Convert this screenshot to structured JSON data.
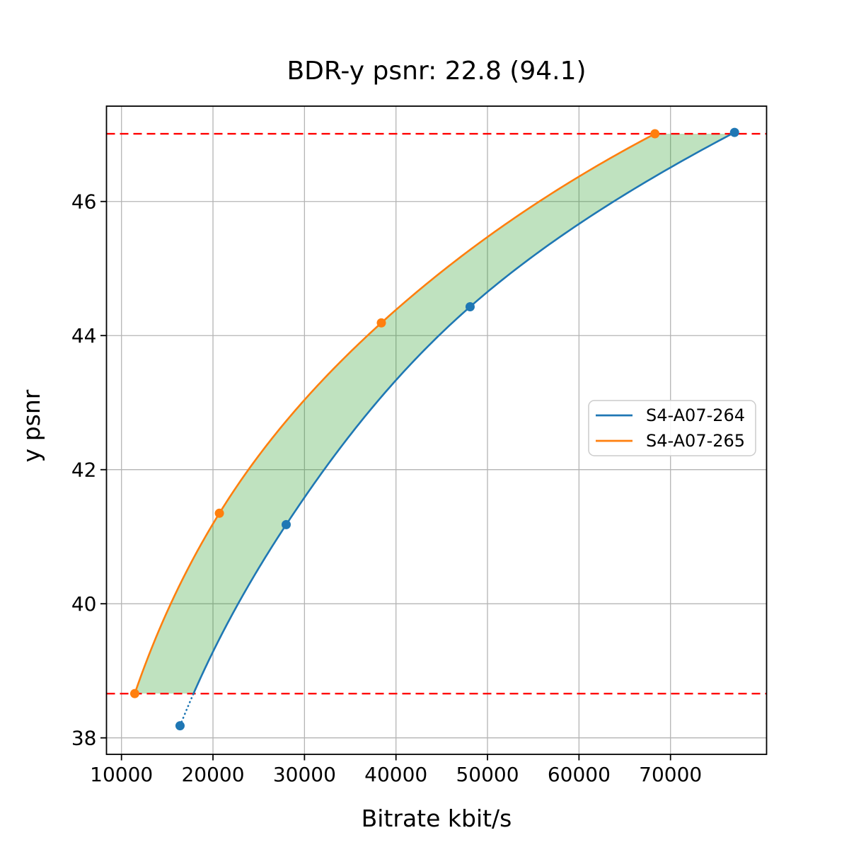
{
  "chart_data": {
    "type": "line",
    "title": "BDR-y psnr: 22.8 (94.1)",
    "xlabel": "Bitrate kbit/s",
    "ylabel": "y psnr",
    "xlim": [
      8361,
      80500
    ],
    "ylim": [
      37.754,
      47.422
    ],
    "x_ticks": [
      10000,
      20000,
      30000,
      40000,
      50000,
      60000,
      70000
    ],
    "x_tick_labels": [
      "10000",
      "20000",
      "30000",
      "40000",
      "50000",
      "60000",
      "70000"
    ],
    "y_ticks": [
      38,
      40,
      42,
      44,
      46
    ],
    "y_tick_labels": [
      "38",
      "40",
      "42",
      "44",
      "46"
    ],
    "grid": true,
    "grid_color": "#b4b4b4",
    "series": [
      {
        "name": "S4-A07-264",
        "color": "#1f77b4",
        "points_x": [
          16400,
          28000,
          48100,
          77000
        ],
        "points_y": [
          38.18,
          41.18,
          44.43,
          47.03
        ]
      },
      {
        "name": "S4-A07-265",
        "color": "#ff7f0e",
        "points_x": [
          11450,
          20700,
          38400,
          68300
        ],
        "points_y": [
          38.66,
          41.35,
          44.19,
          47.01
        ]
      }
    ],
    "bd_interval": {
      "lower": 38.66,
      "upper": 47.01,
      "line_color": "#ff0000",
      "line_style": "dashed"
    },
    "fill_between": {
      "color": "#2ca02c",
      "opacity": 0.3
    },
    "legend": {
      "position": "center right",
      "entries": [
        "S4-A07-264",
        "S4-A07-265"
      ]
    }
  }
}
